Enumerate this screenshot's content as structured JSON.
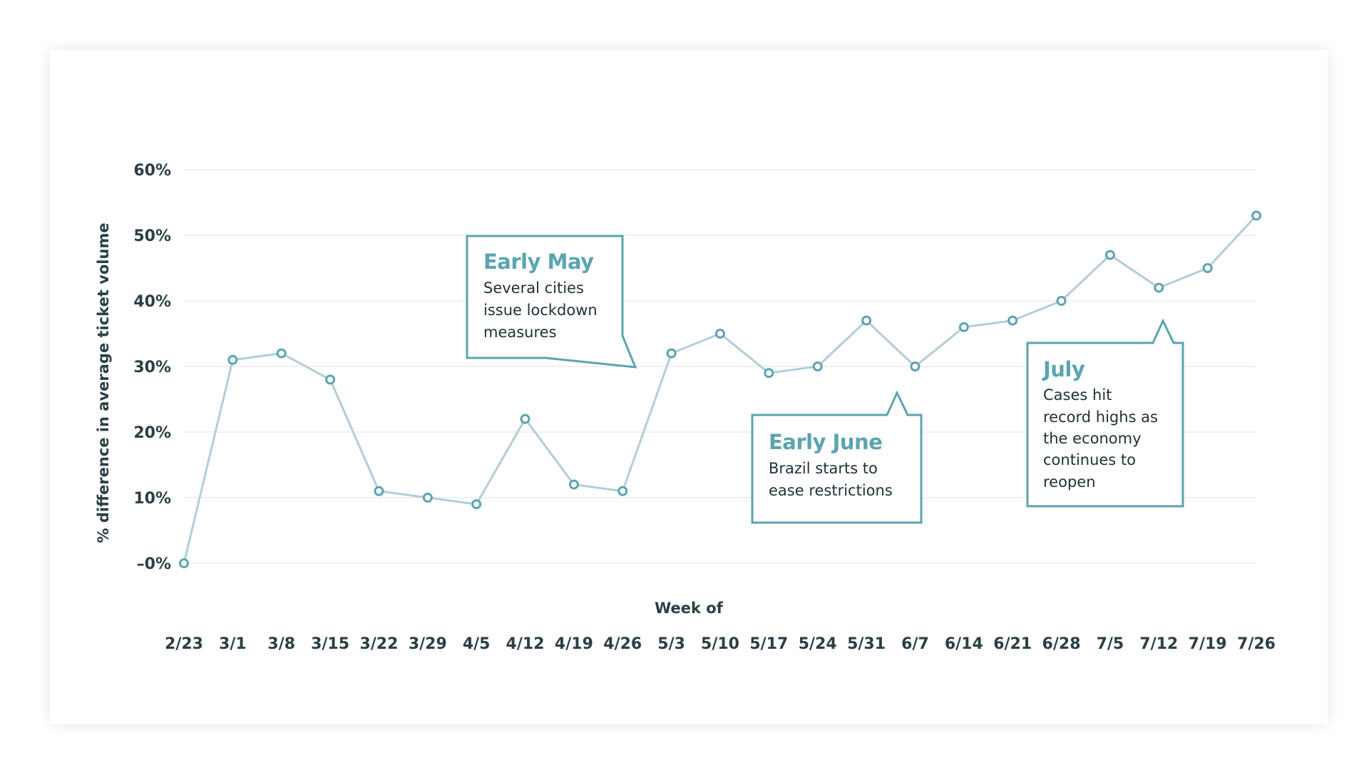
{
  "colors": {
    "line": "#b3cdd7",
    "marker_stroke": "#5ba4b0",
    "grid": "#e8ecee",
    "text": "#2a3f46",
    "annotation_border": "#5ba4b0",
    "annotation_title": "#5ba4b0"
  },
  "chart_data": {
    "type": "line",
    "xlabel": "Week of",
    "ylabel": "% difference in average ticket volume",
    "ylim": [
      0,
      60
    ],
    "yticks": [
      {
        "value": 0,
        "label": "–0%"
      },
      {
        "value": 10,
        "label": "10%"
      },
      {
        "value": 20,
        "label": "20%"
      },
      {
        "value": 30,
        "label": "30%"
      },
      {
        "value": 40,
        "label": "40%"
      },
      {
        "value": 50,
        "label": "50%"
      },
      {
        "value": 60,
        "label": "60%"
      }
    ],
    "grid": true,
    "categories": [
      "2/23",
      "3/1",
      "3/8",
      "3/15",
      "3/22",
      "3/29",
      "4/5",
      "4/12",
      "4/19",
      "4/26",
      "5/3",
      "5/10",
      "5/17",
      "5/24",
      "5/31",
      "6/7",
      "6/14",
      "6/21",
      "6/28",
      "7/5",
      "7/12",
      "7/19",
      "7/26"
    ],
    "values": [
      0,
      31,
      32,
      28,
      11,
      10,
      9,
      22,
      12,
      11,
      32,
      35,
      29,
      30,
      37,
      30,
      36,
      37,
      40,
      47,
      42,
      45,
      53
    ],
    "annotations": [
      {
        "id": "early-may",
        "title": "Early May",
        "lines": [
          "Several cities",
          "issue lockdown",
          "measures"
        ]
      },
      {
        "id": "early-june",
        "title": "Early June",
        "lines": [
          "Brazil starts to",
          "ease restrictions"
        ]
      },
      {
        "id": "july",
        "title": "July",
        "lines": [
          "Cases hit",
          "record highs as",
          "the economy",
          "continues to",
          "reopen"
        ]
      }
    ]
  }
}
